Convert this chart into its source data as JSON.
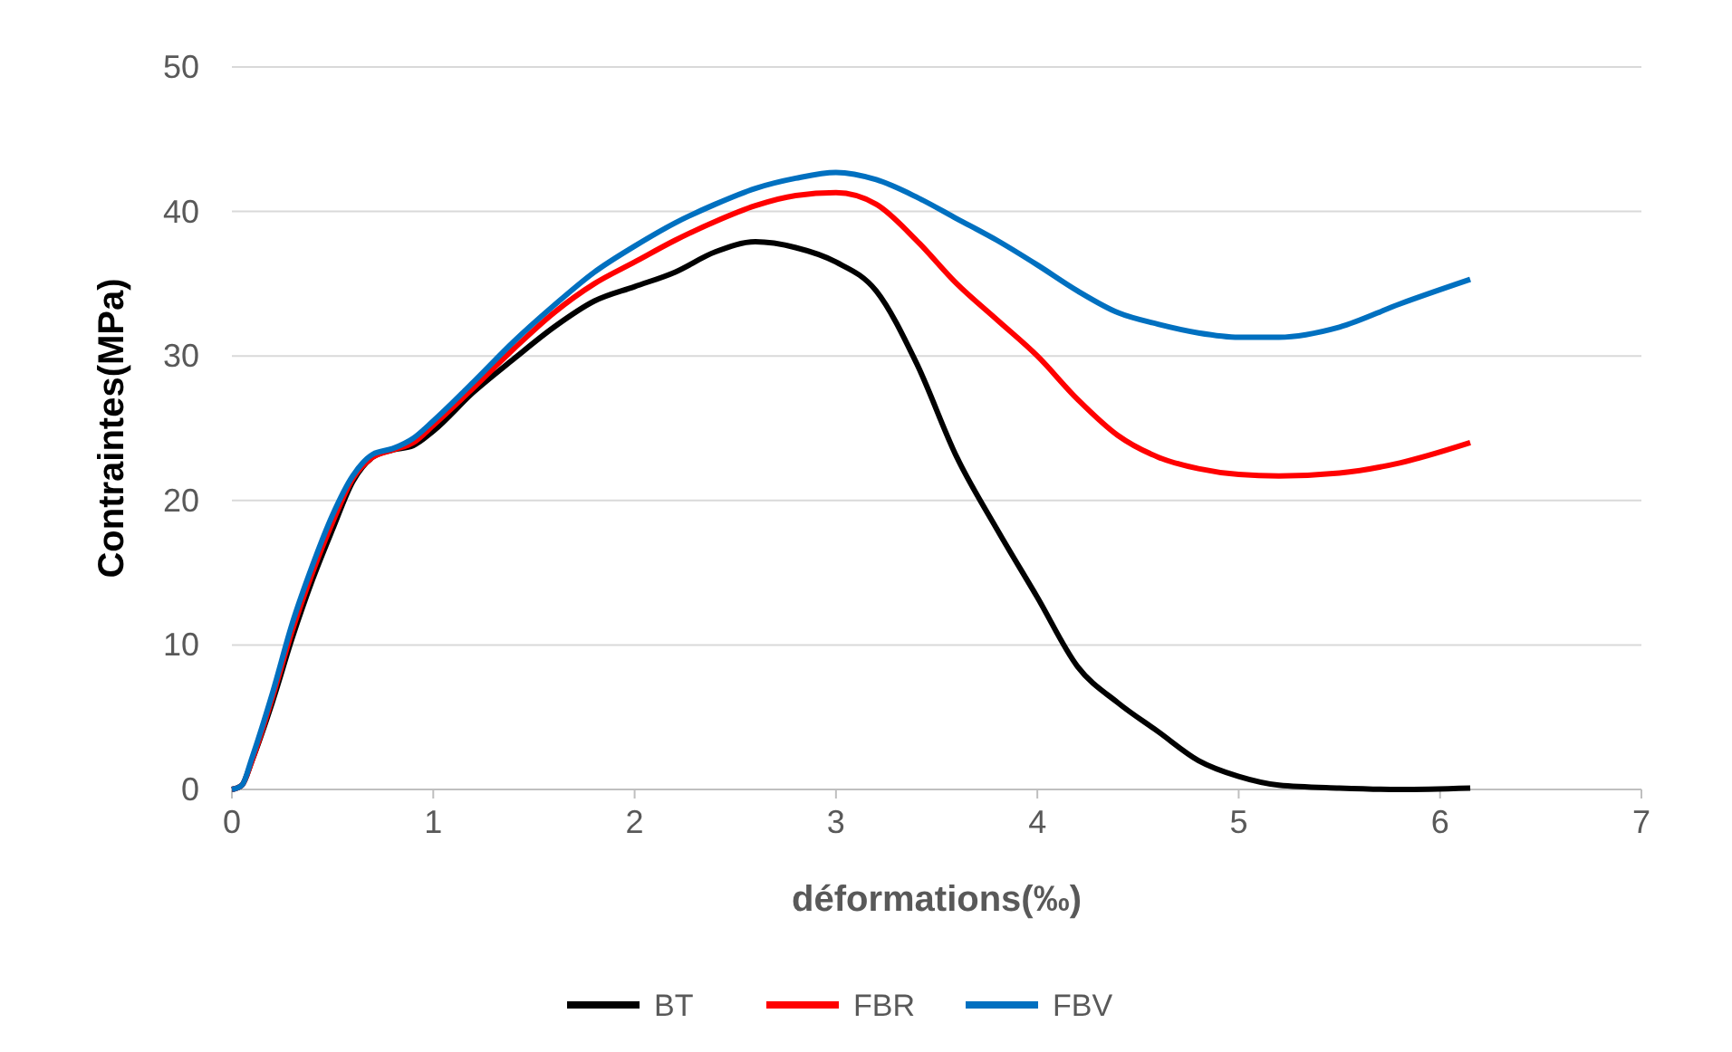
{
  "chart_data": {
    "type": "line",
    "xlabel": "déformations(‰)",
    "ylabel": "Contraintes(MPa)",
    "xlim": [
      0,
      7
    ],
    "xticks": [
      0,
      1,
      2,
      3,
      4,
      5,
      6,
      7
    ],
    "ylim": [
      0,
      50
    ],
    "yticks": [
      0,
      10,
      20,
      30,
      40,
      50
    ],
    "grid": "y",
    "legend": "bottom",
    "marker": "none",
    "line_style": "solid",
    "x": [
      0,
      0.05,
      0.1,
      0.2,
      0.3,
      0.4,
      0.5,
      0.6,
      0.7,
      0.8,
      0.9,
      1.0,
      1.2,
      1.4,
      1.6,
      1.8,
      2.0,
      2.2,
      2.4,
      2.6,
      2.8,
      3.0,
      3.2,
      3.4,
      3.6,
      3.8,
      4.0,
      4.2,
      4.4,
      4.6,
      4.8,
      5.0,
      5.2,
      5.5,
      5.8,
      6.15
    ],
    "series": [
      {
        "name": "BT",
        "color": "#000000",
        "values": [
          0,
          0.3,
          2,
          6,
          10.5,
          14.5,
          18,
          21.3,
          23,
          23.5,
          23.8,
          24.8,
          27.5,
          29.8,
          32,
          33.8,
          34.8,
          35.8,
          37.2,
          37.9,
          37.5,
          36.5,
          34.5,
          29.5,
          23,
          18,
          13.3,
          8.5,
          6,
          4,
          2,
          0.9,
          0.3,
          0.1,
          0,
          0.1
        ]
      },
      {
        "name": "FBR",
        "color": "#ff0000",
        "values": [
          0,
          0.3,
          2,
          6.3,
          11,
          15,
          18.5,
          21.5,
          23,
          23.5,
          24,
          25.2,
          27.8,
          30.5,
          33,
          35,
          36.5,
          38,
          39.3,
          40.4,
          41.1,
          41.3,
          40.5,
          38,
          35,
          32.5,
          30,
          27,
          24.5,
          23,
          22.2,
          21.8,
          21.7,
          21.9,
          22.6,
          24
        ]
      },
      {
        "name": "FBV",
        "color": "#0070c0",
        "values": [
          0,
          0.3,
          2.2,
          6.6,
          11.5,
          15.5,
          19,
          21.7,
          23.2,
          23.6,
          24.3,
          25.5,
          28.2,
          31,
          33.5,
          35.8,
          37.6,
          39.2,
          40.5,
          41.6,
          42.3,
          42.7,
          42.2,
          41,
          39.5,
          38,
          36.3,
          34.5,
          33,
          32.2,
          31.6,
          31.3,
          31.3,
          32,
          33.6,
          35.3
        ]
      }
    ]
  }
}
